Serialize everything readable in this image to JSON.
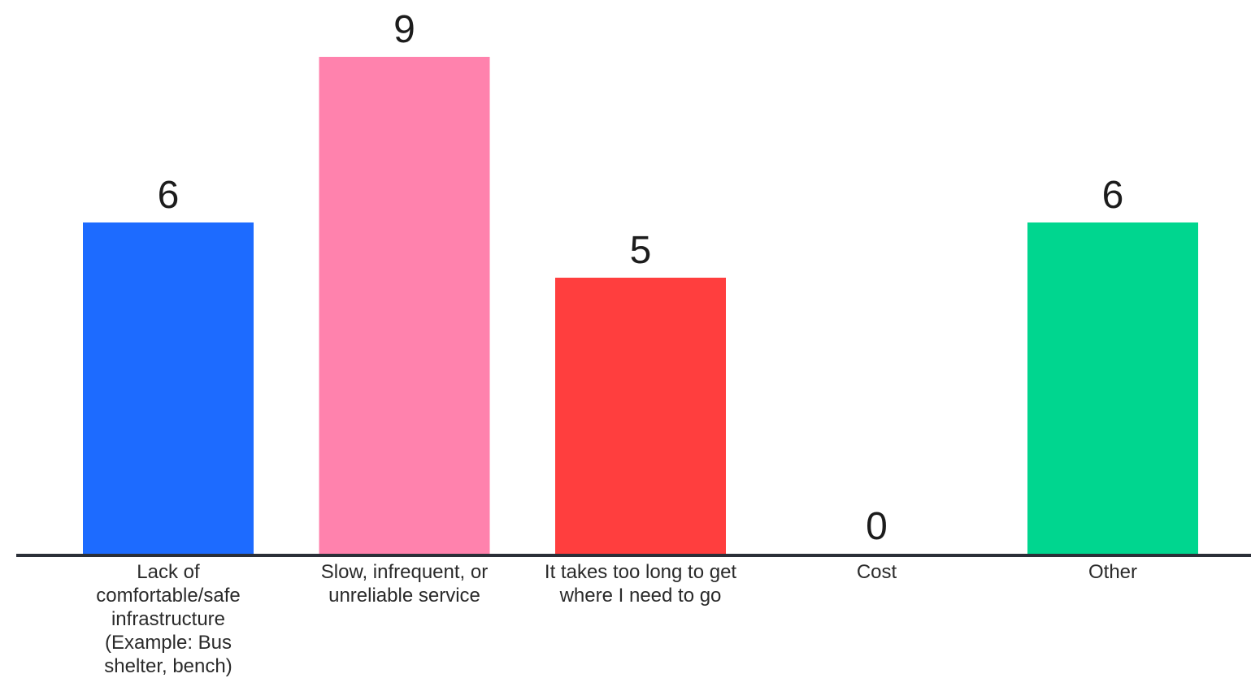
{
  "chart_data": {
    "type": "bar",
    "title": "",
    "xlabel": "",
    "ylabel": "",
    "ylim": [
      0,
      9
    ],
    "grid": false,
    "legend": "none",
    "categories": [
      "Lack of comfortable/safe infrastructure (Example: Bus shelter, bench)",
      "Slow, infrequent, or unreliable service",
      "It takes too long to get where I need to go",
      "Cost",
      "Other"
    ],
    "values": [
      6,
      9,
      5,
      0,
      6
    ],
    "colors": [
      "#1d6bff",
      "#ff82ad",
      "#ff3e3e",
      "#7f7f7f",
      "#00d68f"
    ],
    "axis_color": "#2b2f38"
  }
}
